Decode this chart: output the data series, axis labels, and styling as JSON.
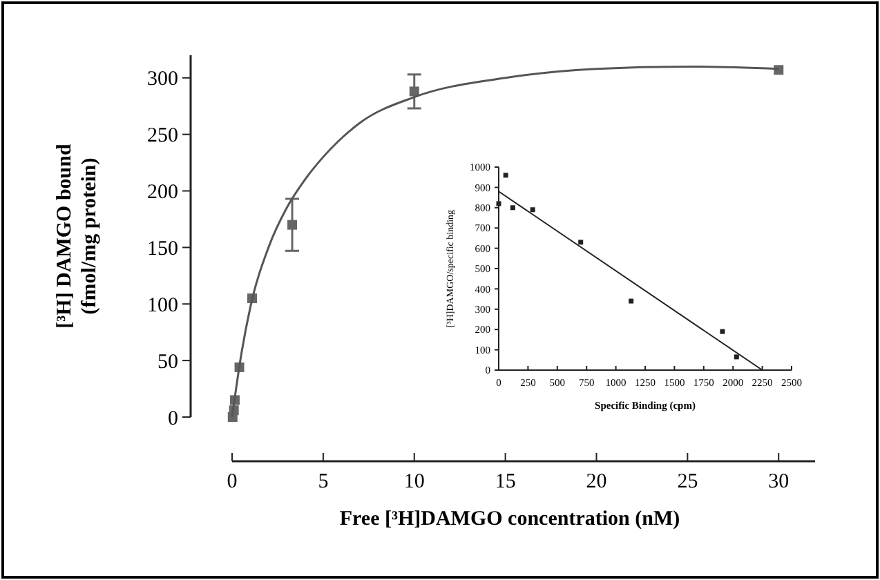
{
  "chart_data": [
    {
      "type": "scatter",
      "xlabel": "Free [³H]DAMGO concentration (nM)",
      "ylabel": "[³H] DAMGO bound\n(fmol/mg protein)",
      "xlim": [
        0,
        32
      ],
      "ylim": [
        0,
        320
      ],
      "xticks": [
        0,
        5,
        10,
        15,
        20,
        25,
        30
      ],
      "yticks": [
        0,
        50,
        100,
        150,
        200,
        250,
        300
      ],
      "grid": false,
      "series": [
        {
          "marker": "square",
          "color": "#666666",
          "x": [
            0.03,
            0.1,
            0.15,
            0.4,
            1.1,
            3.3,
            10,
            30
          ],
          "values": [
            0,
            6,
            15,
            44,
            105,
            170,
            288,
            307
          ],
          "errors": [
            null,
            null,
            null,
            null,
            null,
            23,
            15,
            null
          ]
        },
        {
          "type": "line",
          "marker": "none",
          "line_style": "solid",
          "color": "#555555",
          "x": [
            0,
            0.5,
            1,
            2,
            3,
            4,
            5,
            7,
            10,
            15,
            20,
            25,
            30
          ],
          "values": [
            0,
            55,
            97,
            150,
            185,
            210,
            230,
            260,
            283,
            300,
            308,
            310,
            308
          ]
        }
      ]
    },
    {
      "type": "scatter",
      "xlabel": "Specific Binding (cpm)",
      "ylabel": "[³H]DAMGO/specific binding",
      "xlim": [
        0,
        2500
      ],
      "ylim": [
        0,
        1000
      ],
      "xticks": [
        0,
        250,
        500,
        750,
        1000,
        1250,
        1500,
        1750,
        2000,
        2250,
        2500
      ],
      "yticks": [
        0,
        100,
        200,
        300,
        400,
        500,
        600,
        700,
        800,
        900,
        1000
      ],
      "grid": false,
      "series": [
        {
          "marker": "square",
          "color": "#222222",
          "x": [
            0,
            60,
            120,
            290,
            700,
            1130,
            1910,
            2030
          ],
          "values": [
            820,
            960,
            800,
            790,
            630,
            340,
            190,
            65
          ]
        },
        {
          "type": "line",
          "marker": "none",
          "line_style": "solid",
          "color": "#222222",
          "x": [
            0,
            2250
          ],
          "values": [
            880,
            0
          ]
        }
      ]
    }
  ]
}
